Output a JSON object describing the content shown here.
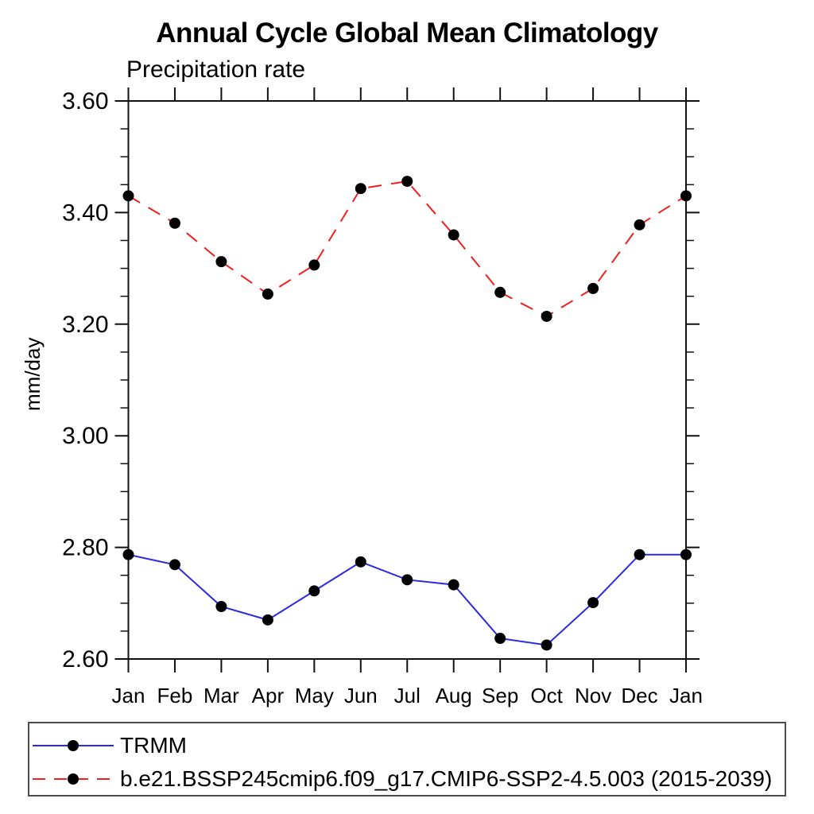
{
  "title": "Annual Cycle Global Mean Climatology",
  "subtitle": "Precipitation rate",
  "ylabel": "mm/day",
  "colors": {
    "trmm_line": "#2a2ae0",
    "model_line": "#f02020",
    "marker": "#000000",
    "axis": "#111111",
    "text": "#000000"
  },
  "chart_data": {
    "type": "line",
    "title": "Annual Cycle Global Mean Climatology",
    "subtitle": "Precipitation rate",
    "ylabel": "mm/day",
    "xlabel": "",
    "categories": [
      "Jan",
      "Feb",
      "Mar",
      "Apr",
      "May",
      "Jun",
      "Jul",
      "Aug",
      "Sep",
      "Oct",
      "Nov",
      "Dec",
      "Jan"
    ],
    "series": [
      {
        "name": "TRMM",
        "color": "#2a2ae0",
        "style": "solid",
        "marker": "circle",
        "marker_color": "#000000",
        "values": [
          2.787,
          2.769,
          2.694,
          2.67,
          2.722,
          2.774,
          2.742,
          2.733,
          2.637,
          2.625,
          2.701,
          2.787,
          2.787
        ]
      },
      {
        "name": "b.e21.BSSP245cmip6.f09_g17.CMIP6-SSP2-4.5.003 (2015-2039)",
        "color": "#f02020",
        "style": "dashed",
        "marker": "circle",
        "marker_color": "#000000",
        "values": [
          3.43,
          3.381,
          3.312,
          3.254,
          3.306,
          3.443,
          3.456,
          3.36,
          3.257,
          3.214,
          3.264,
          3.378,
          3.43
        ]
      }
    ],
    "ylim": [
      2.6,
      3.6
    ],
    "y_major_ticks": [
      2.6,
      2.8,
      3.0,
      3.2,
      3.4,
      3.6
    ],
    "y_major_tick_labels": [
      "2.60",
      "2.80",
      "3.00",
      "3.20",
      "3.40",
      "3.60"
    ],
    "y_minor_step": 0.05,
    "grid": false,
    "legend_position": "bottom"
  }
}
